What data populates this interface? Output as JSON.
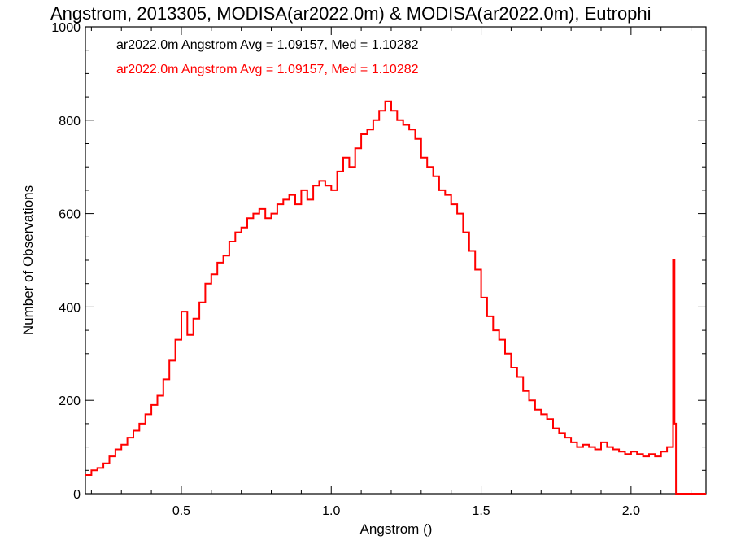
{
  "chart_data": {
    "type": "line",
    "title": "Angstrom, 2013305, MODISA(ar2022.0m) & MODISA(ar2022.0m), Eutrophi",
    "xlabel": "Angstrom ()",
    "ylabel": "Number of Observations",
    "xlim": [
      0.18,
      2.25
    ],
    "ylim": [
      0,
      1000
    ],
    "xticks": [
      0.5,
      1.0,
      1.5,
      2.0
    ],
    "xtick_labels": [
      "0.5",
      "1.0",
      "1.5",
      "2.0"
    ],
    "yticks": [
      0,
      200,
      400,
      600,
      800,
      1000
    ],
    "ytick_labels": [
      "0",
      "200",
      "400",
      "600",
      "800",
      "1000"
    ],
    "grid": false,
    "legend": [
      {
        "text": "ar2022.0m Angstrom Avg = 1.09157, Med = 1.10282",
        "color": "#000000"
      },
      {
        "text": "ar2022.0m Angstrom Avg = 1.09157, Med = 1.10282",
        "color": "#ff0000"
      }
    ],
    "series": [
      {
        "color": "#ff0000",
        "step": true,
        "x": [
          0.18,
          0.2,
          0.22,
          0.24,
          0.26,
          0.28,
          0.3,
          0.32,
          0.34,
          0.36,
          0.38,
          0.4,
          0.42,
          0.44,
          0.46,
          0.48,
          0.5,
          0.52,
          0.54,
          0.56,
          0.58,
          0.6,
          0.62,
          0.64,
          0.66,
          0.68,
          0.7,
          0.72,
          0.74,
          0.76,
          0.78,
          0.8,
          0.82,
          0.84,
          0.86,
          0.88,
          0.9,
          0.92,
          0.94,
          0.96,
          0.98,
          1.0,
          1.02,
          1.04,
          1.06,
          1.08,
          1.1,
          1.12,
          1.14,
          1.16,
          1.18,
          1.2,
          1.22,
          1.24,
          1.26,
          1.28,
          1.3,
          1.32,
          1.34,
          1.36,
          1.38,
          1.4,
          1.42,
          1.44,
          1.46,
          1.48,
          1.5,
          1.52,
          1.54,
          1.56,
          1.58,
          1.6,
          1.62,
          1.64,
          1.66,
          1.68,
          1.7,
          1.72,
          1.74,
          1.76,
          1.78,
          1.8,
          1.82,
          1.84,
          1.86,
          1.88,
          1.9,
          1.92,
          1.94,
          1.96,
          1.98,
          2.0,
          2.02,
          2.04,
          2.06,
          2.08,
          2.1,
          2.12,
          2.14,
          2.145,
          2.15,
          2.16,
          2.17,
          2.25
        ],
        "y": [
          40,
          50,
          55,
          65,
          80,
          95,
          105,
          120,
          135,
          150,
          170,
          190,
          210,
          245,
          285,
          330,
          390,
          340,
          375,
          410,
          450,
          470,
          495,
          510,
          540,
          560,
          570,
          590,
          600,
          610,
          590,
          600,
          620,
          630,
          640,
          620,
          650,
          630,
          660,
          670,
          660,
          650,
          690,
          720,
          700,
          740,
          770,
          780,
          800,
          820,
          840,
          820,
          800,
          790,
          780,
          760,
          720,
          700,
          680,
          650,
          640,
          620,
          600,
          560,
          520,
          480,
          420,
          380,
          350,
          330,
          300,
          270,
          250,
          220,
          200,
          180,
          170,
          160,
          140,
          130,
          120,
          110,
          100,
          105,
          100,
          95,
          110,
          100,
          95,
          90,
          85,
          90,
          85,
          80,
          85,
          80,
          90,
          100,
          500,
          150,
          0,
          0,
          0,
          0
        ]
      }
    ]
  }
}
